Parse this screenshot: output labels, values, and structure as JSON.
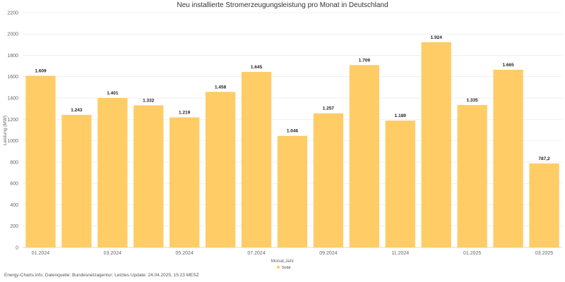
{
  "chart_data": {
    "type": "bar",
    "title": "Neu installierte Stromerzeugungsleistung pro Monat in Deutschland",
    "ylabel": "Leistung (MW)",
    "xlabel": "Monat,Jahr",
    "ylim": [
      0,
      2200
    ],
    "yticks": [
      0,
      200,
      400,
      600,
      800,
      1000,
      1200,
      1400,
      1600,
      1800,
      2000,
      2200
    ],
    "grid": true,
    "legend_position": "bottom",
    "categories": [
      "01.2024",
      "02.2024",
      "03.2024",
      "04.2024",
      "05.2024",
      "06.2024",
      "07.2024",
      "08.2024",
      "09.2024",
      "10.2024",
      "11.2024",
      "12.2024",
      "01.2025",
      "02.2025",
      "03.2025"
    ],
    "x_tick_labels": [
      "01.2024",
      "",
      "03.2024",
      "",
      "05.2024",
      "",
      "07.2024",
      "",
      "09.2024",
      "",
      "11.2024",
      "",
      "01.2025",
      "",
      "03.2025"
    ],
    "series": [
      {
        "name": "Solar",
        "color": "#ffcc66",
        "values": [
          1609,
          1243,
          1401,
          1332,
          1219,
          1458,
          1645,
          1046,
          1257,
          1709,
          1189,
          1924,
          1335,
          1665,
          787.2
        ],
        "labels": [
          "1.609",
          "1.243",
          "1.401",
          "1.332",
          "1.219",
          "1.458",
          "1.645",
          "1.046",
          "1.257",
          "1.709",
          "1.189",
          "1.924",
          "1.335",
          "1.665",
          "787,2"
        ]
      }
    ]
  },
  "footer": {
    "source_text": "Energy-Charts.info; Datenquelle: Bundesnetzagentur; Letztes Update: 24.04.2025, 15:23 MESZ"
  }
}
